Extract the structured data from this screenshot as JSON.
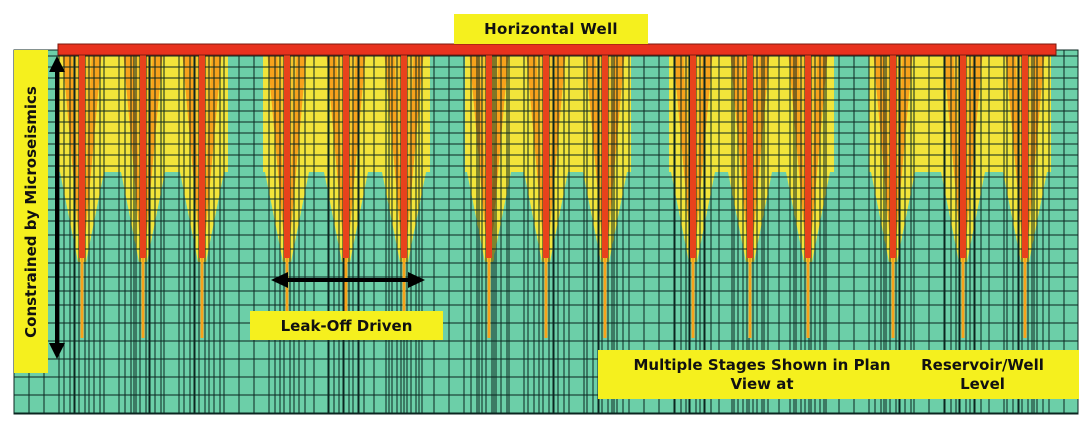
{
  "diagram": {
    "title": "Horizontal Well",
    "leak_off_label": "Leak-Off  Driven",
    "vertical_label": "Constrained by Microseismics",
    "stages_label_line1": "Multiple Stages Shown in Plan View at",
    "stages_label_line2": "Reservoir/Well  Level",
    "stage_group_count": 5,
    "fractures_per_stage": 3
  },
  "colors": {
    "reservoir": "#6ccfa8",
    "grid_line": "#0b2620",
    "well": "#e8321e",
    "fracture_core": "#e8421c",
    "fracture_orange": "#f7a21b",
    "fracture_yellow": "#f2e43a",
    "label_fill": "#f5f01e",
    "arrow": "#000000"
  }
}
